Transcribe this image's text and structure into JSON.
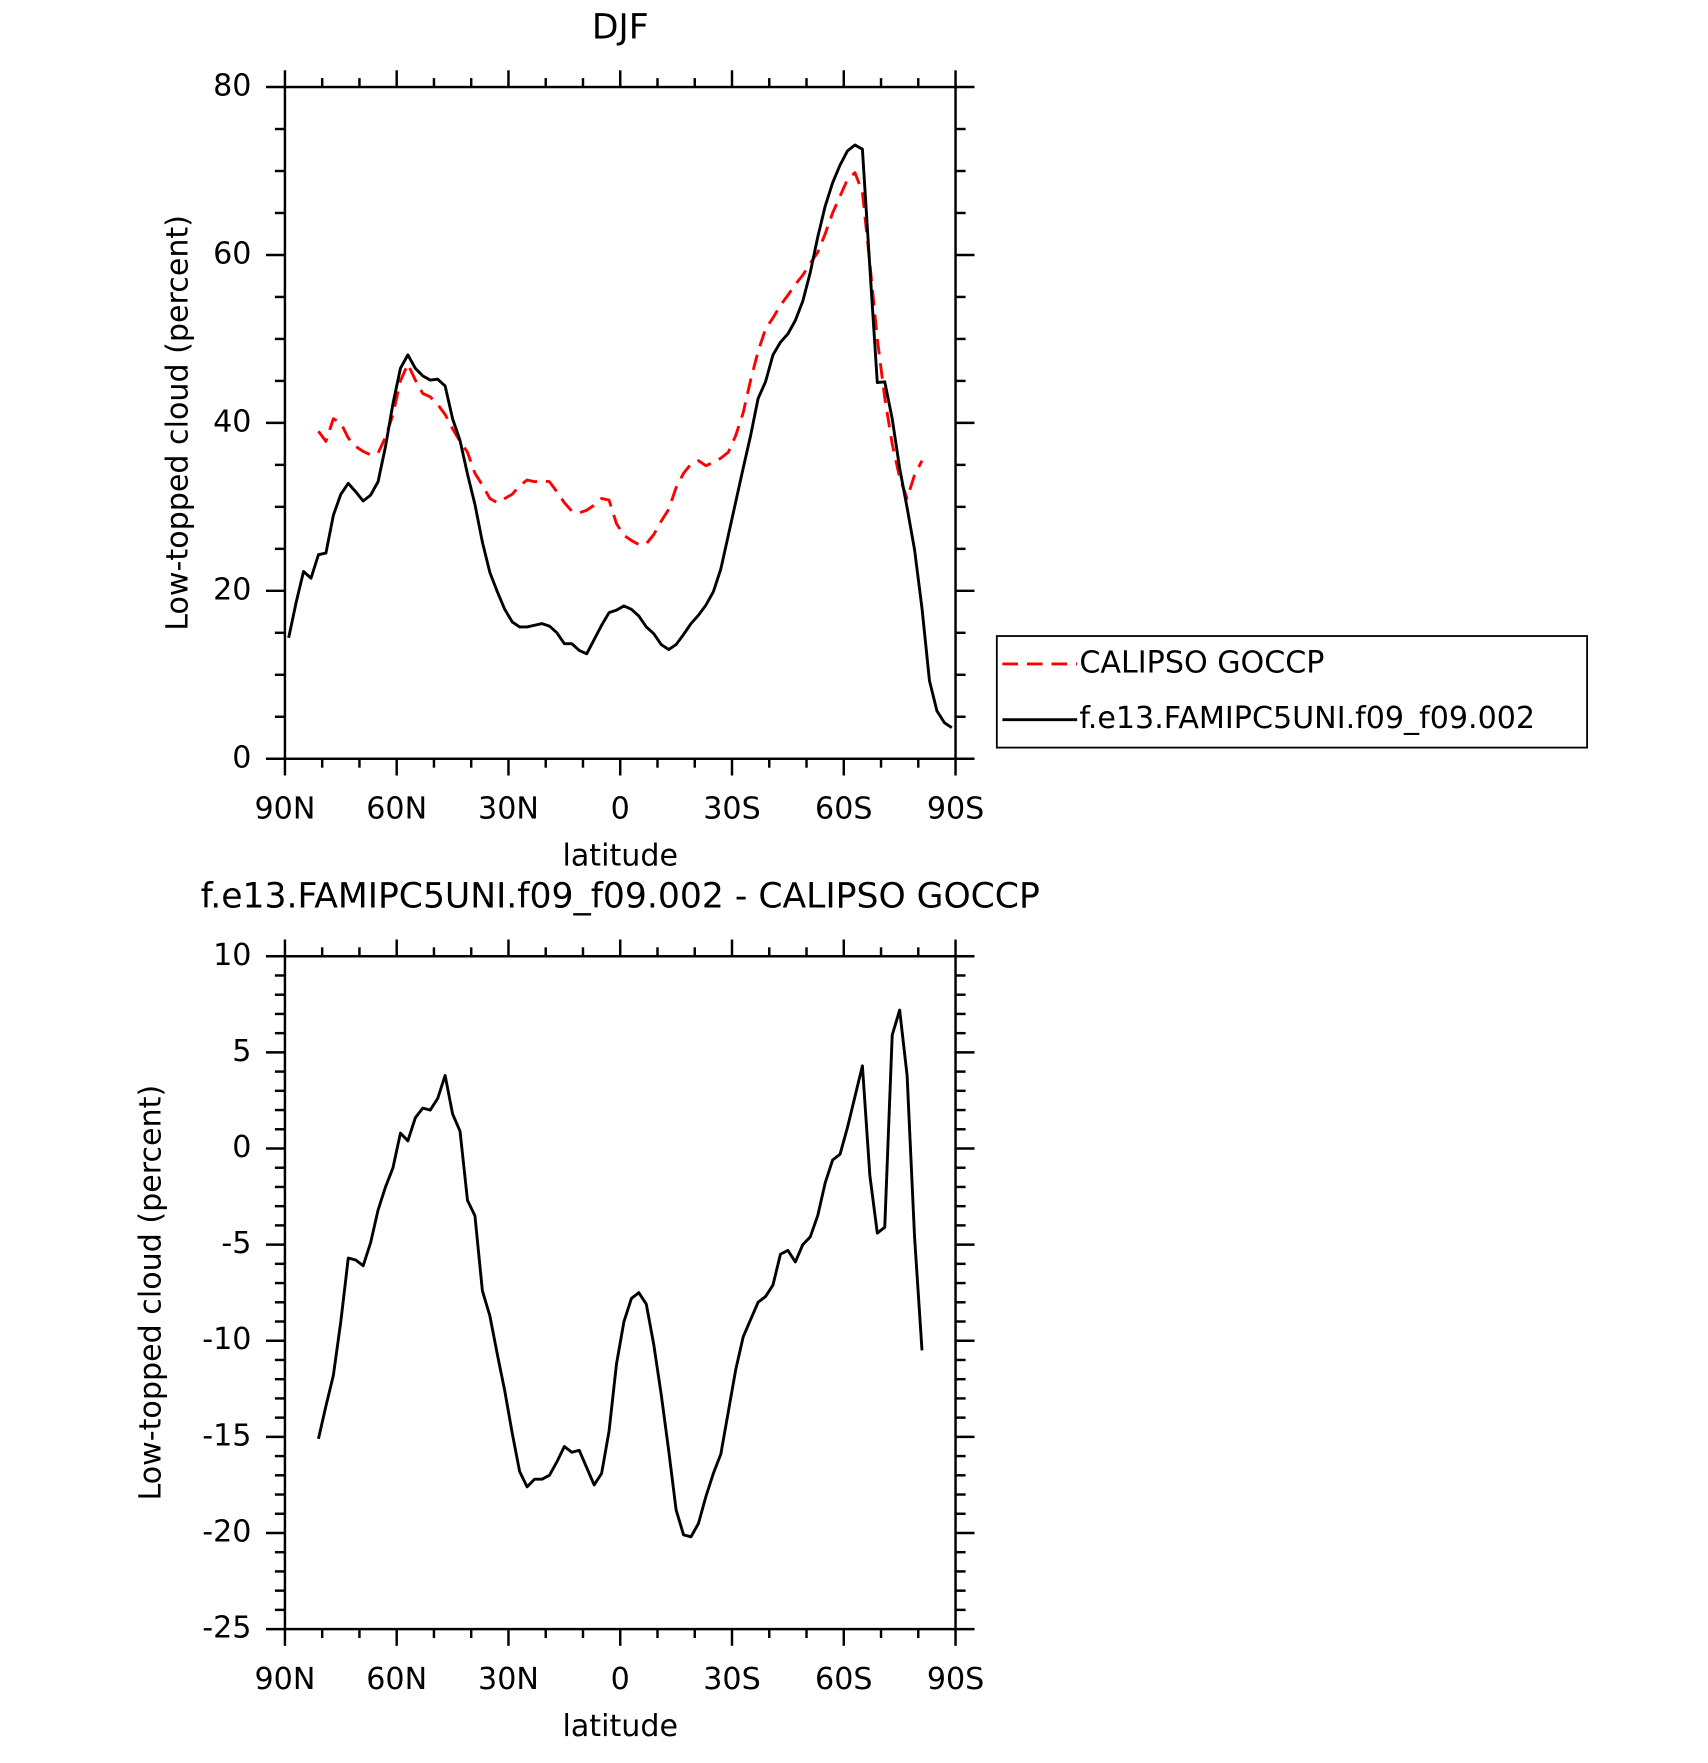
{
  "chart_data": [
    {
      "type": "line",
      "title": "DJF",
      "xlabel": "latitude",
      "ylabel": "Low-topped cloud (percent)",
      "x": [
        89,
        87,
        85,
        83,
        81,
        79,
        77,
        75,
        73,
        71,
        69,
        67,
        65,
        63,
        61,
        59,
        57,
        55,
        53,
        51,
        49,
        47,
        45,
        43,
        41,
        39,
        37,
        35,
        33,
        31,
        29,
        27,
        25,
        23,
        21,
        19,
        17,
        15,
        13,
        11,
        9,
        7,
        5,
        3,
        1,
        -1,
        -3,
        -5,
        -7,
        -9,
        -11,
        -13,
        -15,
        -17,
        -19,
        -21,
        -23,
        -25,
        -27,
        -29,
        -31,
        -33,
        -35,
        -37,
        -39,
        -41,
        -43,
        -45,
        -47,
        -49,
        -51,
        -53,
        -55,
        -57,
        -59,
        -61,
        -63,
        -65,
        -67,
        -69,
        -71,
        -73,
        -75,
        -77,
        -79,
        -81,
        -83,
        -85,
        -87,
        -89
      ],
      "xlim": [
        90,
        -90
      ],
      "xticks": [
        {
          "value": 90,
          "label": "90N"
        },
        {
          "value": 60,
          "label": "60N"
        },
        {
          "value": 30,
          "label": "30N"
        },
        0,
        {
          "value": -30,
          "label": "30S"
        },
        {
          "value": -60,
          "label": "60S"
        },
        {
          "value": -90,
          "label": "90S"
        }
      ],
      "xminorticks": [
        80,
        70,
        50,
        40,
        20,
        10,
        -10,
        -20,
        -40,
        -50,
        -70,
        -80
      ],
      "ylim": [
        0,
        80
      ],
      "yticks": [
        0,
        20,
        40,
        60,
        80
      ],
      "yminorticks": [
        5,
        10,
        15,
        25,
        30,
        35,
        45,
        50,
        55,
        65,
        70,
        75
      ],
      "legend": "right",
      "series": [
        {
          "name": "CALIPSO GOCCP",
          "color": "#ff0000",
          "dashed": true,
          "values": [
            null,
            null,
            null,
            null,
            39.0,
            37.8,
            40.5,
            40.0,
            38.2,
            37.2,
            36.6,
            36.2,
            36.4,
            38.3,
            41.0,
            45.0,
            47.0,
            45.1,
            43.5,
            43.1,
            42.2,
            41.0,
            39.3,
            37.8,
            36.5,
            34.0,
            32.6,
            31.0,
            30.5,
            31.0,
            31.5,
            32.5,
            33.2,
            33.0,
            33.1,
            33.0,
            31.8,
            30.5,
            29.5,
            29.3,
            29.6,
            30.2,
            31.0,
            30.8,
            28.0,
            26.6,
            26.0,
            25.5,
            25.6,
            26.7,
            28.3,
            29.7,
            32.3,
            34.0,
            35.1,
            35.5,
            34.9,
            35.3,
            35.8,
            36.5,
            38.5,
            41.2,
            45.1,
            48.5,
            51.2,
            52.5,
            54.0,
            55.2,
            56.5,
            57.6,
            59.0,
            60.3,
            62.5,
            65.0,
            67.0,
            69.0,
            69.8,
            67.5,
            59.0,
            50.0,
            43.0,
            37.5,
            33.5,
            31.0,
            33.8,
            35.5,
            null,
            null,
            null,
            null
          ]
        },
        {
          "name": "f.e13.FAMIPC5UNI.f09_f09.002",
          "color": "#000000",
          "dashed": false,
          "values": [
            14.4,
            18.6,
            22.3,
            21.5,
            24.3,
            24.5,
            29.0,
            31.5,
            32.8,
            31.8,
            30.7,
            31.4,
            33.0,
            37.2,
            42.3,
            46.5,
            48.1,
            46.5,
            45.6,
            45.1,
            45.2,
            44.4,
            40.5,
            37.9,
            33.9,
            30.3,
            25.8,
            22.2,
            19.9,
            17.8,
            16.3,
            15.7,
            15.7,
            15.9,
            16.1,
            15.8,
            15.0,
            13.7,
            13.7,
            12.9,
            12.5,
            14.2,
            15.9,
            17.4,
            17.7,
            18.2,
            17.8,
            17.0,
            15.7,
            14.9,
            13.6,
            13.0,
            13.6,
            14.8,
            16.1,
            17.1,
            18.3,
            19.9,
            22.6,
            26.6,
            30.6,
            34.6,
            38.5,
            42.9,
            44.9,
            48.1,
            49.6,
            50.6,
            52.2,
            54.5,
            57.9,
            62.1,
            65.8,
            68.6,
            70.7,
            72.4,
            73.1,
            72.6,
            58.5,
            44.8,
            44.9,
            40.5,
            34.6,
            29.9,
            24.9,
            17.9,
            9.3,
            5.7,
            4.3,
            3.7
          ]
        }
      ]
    },
    {
      "type": "line",
      "title": "f.e13.FAMIPC5UNI.f09_f09.002 - CALIPSO GOCCP",
      "xlabel": "latitude",
      "ylabel": "Low-topped cloud (percent)",
      "x": [
        81,
        79,
        77,
        75,
        73,
        71,
        69,
        67,
        65,
        63,
        61,
        59,
        57,
        55,
        53,
        51,
        49,
        47,
        45,
        43,
        41,
        39,
        37,
        35,
        33,
        31,
        29,
        27,
        25,
        23,
        21,
        19,
        17,
        15,
        13,
        11,
        9,
        7,
        5,
        3,
        1,
        -1,
        -3,
        -5,
        -7,
        -9,
        -11,
        -13,
        -15,
        -17,
        -19,
        -21,
        -23,
        -25,
        -27,
        -29,
        -31,
        -33,
        -35,
        -37,
        -39,
        -41,
        -43,
        -45,
        -47,
        -49,
        -51,
        -53,
        -55,
        -57,
        -59,
        -61,
        -63,
        -65,
        -67,
        -69,
        -71,
        -73,
        -75,
        -77,
        -79,
        -81
      ],
      "xlim": [
        90,
        -90
      ],
      "xticks": [
        {
          "value": 90,
          "label": "90N"
        },
        {
          "value": 60,
          "label": "60N"
        },
        {
          "value": 30,
          "label": "30N"
        },
        0,
        {
          "value": -30,
          "label": "30S"
        },
        {
          "value": -60,
          "label": "60S"
        },
        {
          "value": -90,
          "label": "90S"
        }
      ],
      "xminorticks": [
        80,
        70,
        50,
        40,
        20,
        10,
        -10,
        -20,
        -40,
        -50,
        -70,
        -80
      ],
      "ylim": [
        -25,
        10
      ],
      "yticks": [
        -25,
        -20,
        -15,
        -10,
        -5,
        0,
        5,
        10
      ],
      "yminorticks": [
        -24,
        -23,
        -22,
        -21,
        -19,
        -18,
        -17,
        -16,
        -14,
        -13,
        -12,
        -11,
        -9,
        -8,
        -7,
        -6,
        -4,
        -3,
        -2,
        -1,
        1,
        2,
        3,
        4,
        6,
        7,
        8,
        9
      ],
      "series": [
        {
          "color": "#000000",
          "dashed": false,
          "values": [
            -15.1,
            -13.4,
            -11.8,
            -9.0,
            -5.7,
            -5.8,
            -6.1,
            -4.9,
            -3.2,
            -2.0,
            -1.0,
            0.8,
            0.4,
            1.6,
            2.1,
            2.0,
            2.6,
            3.8,
            1.8,
            0.9,
            -2.7,
            -3.5,
            -7.4,
            -8.7,
            -10.7,
            -12.6,
            -14.8,
            -16.8,
            -17.6,
            -17.2,
            -17.2,
            -17.0,
            -16.3,
            -15.5,
            -15.8,
            -15.7,
            -16.6,
            -17.5,
            -16.9,
            -14.7,
            -11.2,
            -9.0,
            -7.8,
            -7.5,
            -8.1,
            -10.2,
            -12.8,
            -15.7,
            -18.8,
            -20.1,
            -20.2,
            -19.5,
            -18.1,
            -16.9,
            -15.9,
            -13.7,
            -11.5,
            -9.8,
            -8.9,
            -8.0,
            -7.7,
            -7.1,
            -5.5,
            -5.3,
            -5.9,
            -5.0,
            -4.6,
            -3.5,
            -1.8,
            -0.6,
            -0.3,
            1.1,
            2.7,
            4.3,
            -1.4,
            -4.4,
            -4.1,
            5.9,
            7.2,
            3.8,
            -4.6,
            -10.5
          ]
        }
      ]
    }
  ]
}
